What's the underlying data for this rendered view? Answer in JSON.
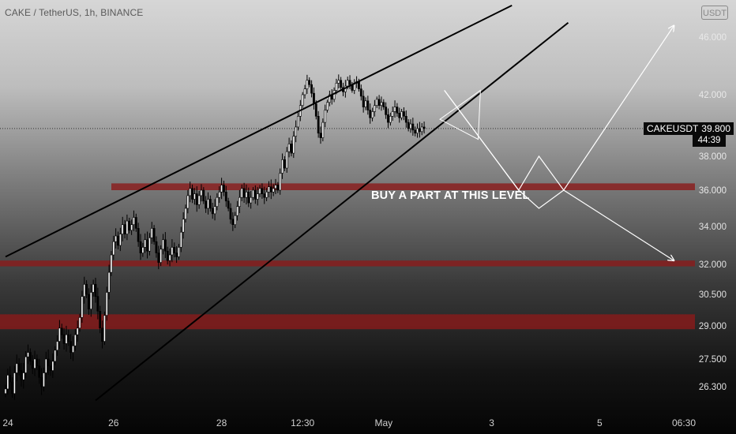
{
  "header": {
    "symbol_line": "CAKE / TetherUS, 1h, BINANCE",
    "currency": "USDT"
  },
  "price_label": {
    "symbol": "CAKEUSDT",
    "price": "39.800",
    "countdown": "44:39"
  },
  "annotation": "BUY A PART AT THIS LEVEL",
  "colors": {
    "candle_bull": "#ffffff",
    "candle_bear": "#000000",
    "zone": "#8b1a1a",
    "trendline": "#000000",
    "projection": "#ffffff"
  },
  "chart_data": {
    "type": "candlestick",
    "title": "CAKE / TetherUS, 1h, BINANCE",
    "y_axis": {
      "ticks": [
        {
          "label": "46.000",
          "value": 46.0
        },
        {
          "label": "42.000",
          "value": 42.0
        },
        {
          "label": "38.000",
          "value": 38.0
        },
        {
          "label": "36.000",
          "value": 36.0
        },
        {
          "label": "34.000",
          "value": 34.0
        },
        {
          "label": "32.000",
          "value": 32.0
        },
        {
          "label": "30.500",
          "value": 30.5
        },
        {
          "label": "29.000",
          "value": 29.0
        },
        {
          "label": "27.500",
          "value": 27.5
        },
        {
          "label": "26.300",
          "value": 26.3
        }
      ],
      "current_price": 39.8
    },
    "x_axis": {
      "ticks": [
        {
          "label": "24",
          "index": 0
        },
        {
          "label": "26",
          "index": 48
        },
        {
          "label": "28",
          "index": 96
        },
        {
          "label": "12:30",
          "index": 132
        },
        {
          "label": "May",
          "index": 168
        },
        {
          "label": "3",
          "index": 216
        },
        {
          "label": "5",
          "index": 264
        },
        {
          "label": "06:30",
          "index": 295
        }
      ]
    },
    "candles_close": [
      26.2,
      26.8,
      26.5,
      26.0,
      26.9,
      27.3,
      27.0,
      26.6,
      26.9,
      27.6,
      27.8,
      27.4,
      27.1,
      27.5,
      27.2,
      26.7,
      26.3,
      26.9,
      27.5,
      27.2,
      27.0,
      27.4,
      27.9,
      28.3,
      28.9,
      28.6,
      28.2,
      28.6,
      28.3,
      27.8,
      28.1,
      28.6,
      28.9,
      29.4,
      30.4,
      31.0,
      30.5,
      29.8,
      30.6,
      31.0,
      30.4,
      29.7,
      28.9,
      28.3,
      29.5,
      30.6,
      31.6,
      32.5,
      33.2,
      33.5,
      33.0,
      33.6,
      34.1,
      33.6,
      34.3,
      33.8,
      34.1,
      34.5,
      33.9,
      33.2,
      32.6,
      32.9,
      33.3,
      32.7,
      33.4,
      33.9,
      33.2,
      32.6,
      32.1,
      32.8,
      33.3,
      32.7,
      32.2,
      32.5,
      32.9,
      32.6,
      32.4,
      32.9,
      33.7,
      34.4,
      35.0,
      35.7,
      36.1,
      35.5,
      35.8,
      35.2,
      35.7,
      36.0,
      35.4,
      35.0,
      35.5,
      35.0,
      34.7,
      35.1,
      35.6,
      35.9,
      36.3,
      35.9,
      35.4,
      35.0,
      34.4,
      34.1,
      34.6,
      35.1,
      35.6,
      36.1,
      35.6,
      35.9,
      35.3,
      35.6,
      36.0,
      35.5,
      35.8,
      36.1,
      35.8,
      35.6,
      35.9,
      36.2,
      35.9,
      36.1,
      36.3,
      36.0,
      37.0,
      37.8,
      37.3,
      38.3,
      38.8,
      38.2,
      39.3,
      39.9,
      40.6,
      41.3,
      42.0,
      42.4,
      43.0,
      42.7,
      42.1,
      41.4,
      40.6,
      39.5,
      39.2,
      40.2,
      41.0,
      41.5,
      42.0,
      41.7,
      42.3,
      42.8,
      43.0,
      42.5,
      42.2,
      42.6,
      43.0,
      42.7,
      42.3,
      42.8,
      42.9,
      42.4,
      41.9,
      41.2,
      41.6,
      41.0,
      40.5,
      40.9,
      41.3,
      41.7,
      41.3,
      41.5,
      41.2,
      40.7,
      40.2,
      40.6,
      40.9,
      41.2,
      40.8,
      40.5,
      40.9,
      40.6,
      40.2,
      39.8,
      40.1,
      39.7,
      39.5,
      39.8,
      39.6,
      39.9,
      39.8
    ],
    "zones": [
      {
        "from": 36.0,
        "to": 36.4,
        "x_start": 60,
        "x_end": 310
      },
      {
        "from": 31.9,
        "to": 32.2,
        "x_start": 0,
        "x_end": 300
      },
      {
        "from": 28.85,
        "to": 29.55,
        "x_start": 0,
        "x_end": 300
      }
    ],
    "trendlines": [
      {
        "from": {
          "i": 0,
          "p": 32.4
        },
        "to": {
          "i": 225,
          "p": 48.2
        }
      },
      {
        "from": {
          "i": 40,
          "p": 25.7
        },
        "to": {
          "i": 250,
          "p": 47.0
        }
      }
    ],
    "projection_paths": [
      [
        [
          195,
          42.3
        ],
        [
          228,
          36.0
        ],
        [
          237,
          38.0
        ],
        [
          248,
          36.0
        ],
        [
          297,
          46.8
        ]
      ],
      [
        [
          195,
          42.3
        ],
        [
          228,
          36.0
        ],
        [
          237,
          35.0
        ],
        [
          248,
          36.0
        ],
        [
          297,
          32.2
        ]
      ]
    ],
    "triangle": [
      [
        193,
        40.4
      ],
      [
        210,
        39.1
      ],
      [
        211,
        42.3
      ]
    ],
    "annotation": {
      "text": "BUY A PART AT THIS LEVEL"
    }
  }
}
